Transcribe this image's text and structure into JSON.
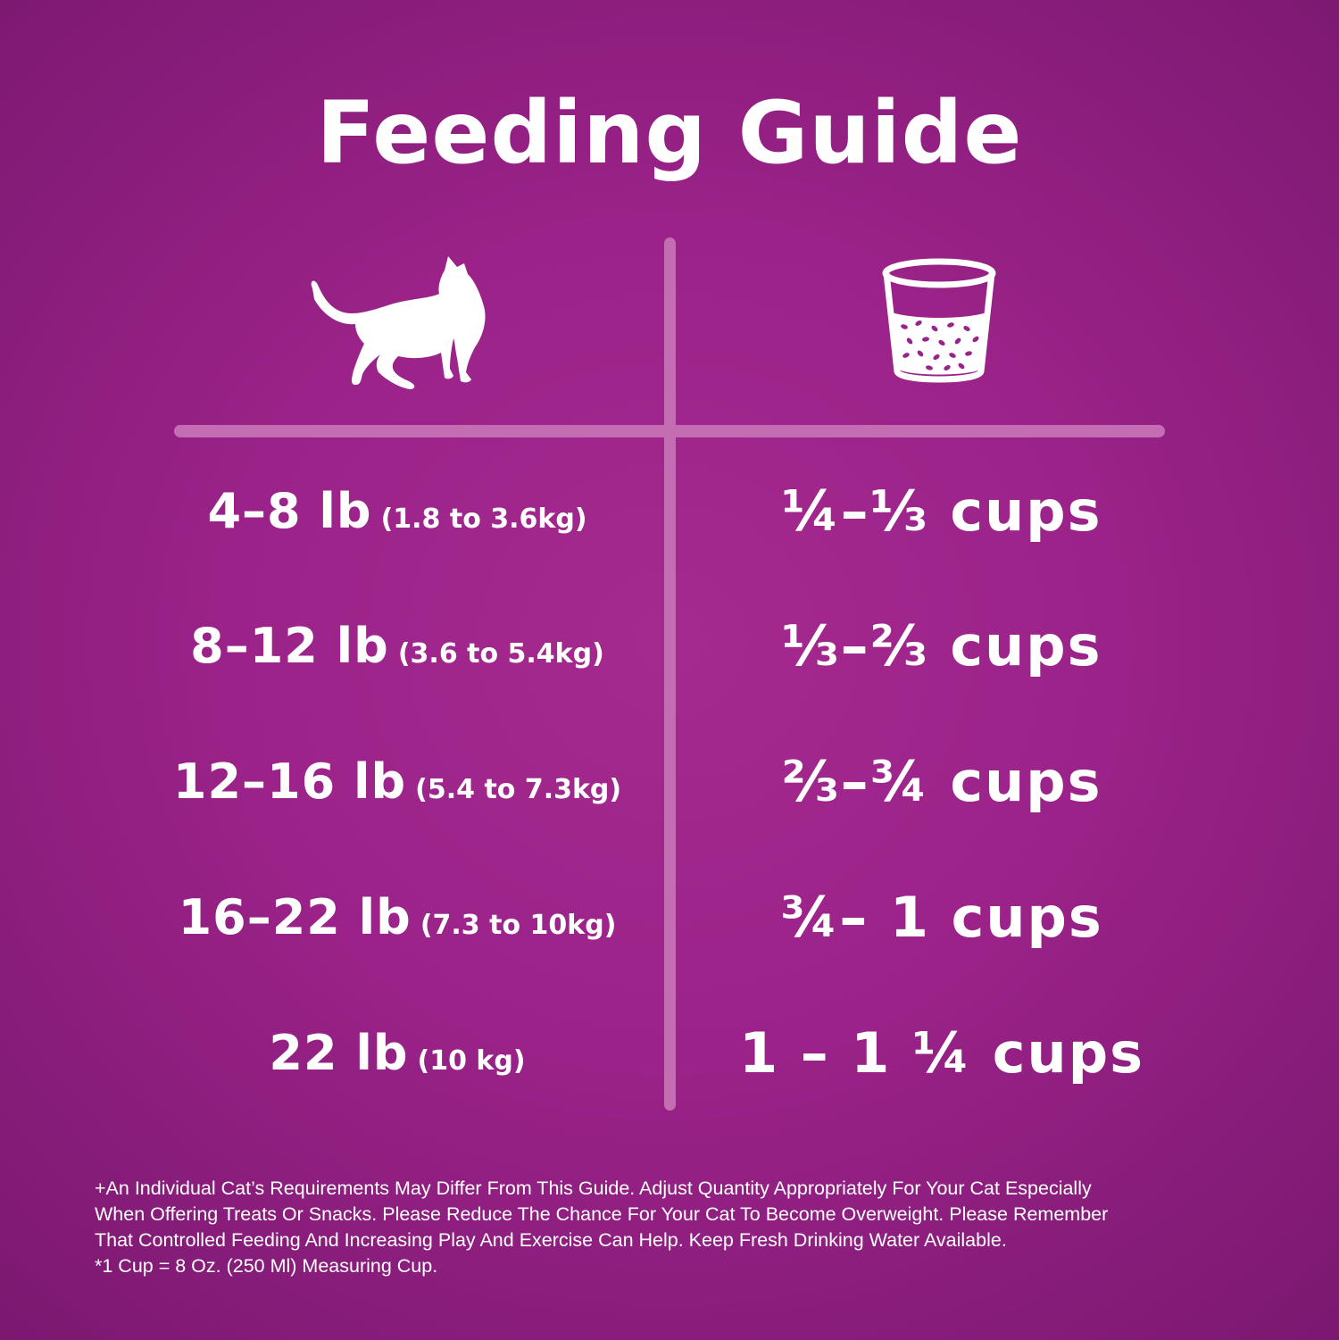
{
  "title": "Feeding Guide",
  "columns": {
    "left_icon": "cat-icon",
    "right_icon": "measuring-cup-icon"
  },
  "rows": [
    {
      "weight": "4–8 lb",
      "metric": "(1.8 to 3.6kg)",
      "amount": "¼–⅓ cups"
    },
    {
      "weight": "8–12 lb",
      "metric": "(3.6 to 5.4kg)",
      "amount": "⅓–⅔ cups"
    },
    {
      "weight": "12–16 lb",
      "metric": "(5.4 to 7.3kg)",
      "amount": "⅔–¾ cups"
    },
    {
      "weight": "16–22 lb",
      "metric": "(7.3 to 10kg)",
      "amount": "¾– 1 cups"
    },
    {
      "weight": "22 lb",
      "metric": "(10 kg)",
      "amount": "1 – 1 ¼ cups"
    }
  ],
  "footnote": [
    "+An Individual Cat’s Requirements May Differ From This Guide.  Adjust Quantity Appropriately For Your Cat Especially",
    "When Offering Treats Or Snacks.  Please Reduce The Chance For Your Cat To Become Overweight.  Please Remember",
    "That Controlled Feeding And Increasing Play And Exercise Can Help.  Keep Fresh Drinking Water Available.",
    "*1 Cup = 8 Oz. (250 Ml) Measuring Cup."
  ],
  "colors": {
    "background": "#9a2288",
    "divider": "#c56db3",
    "text": "#ffffff"
  }
}
